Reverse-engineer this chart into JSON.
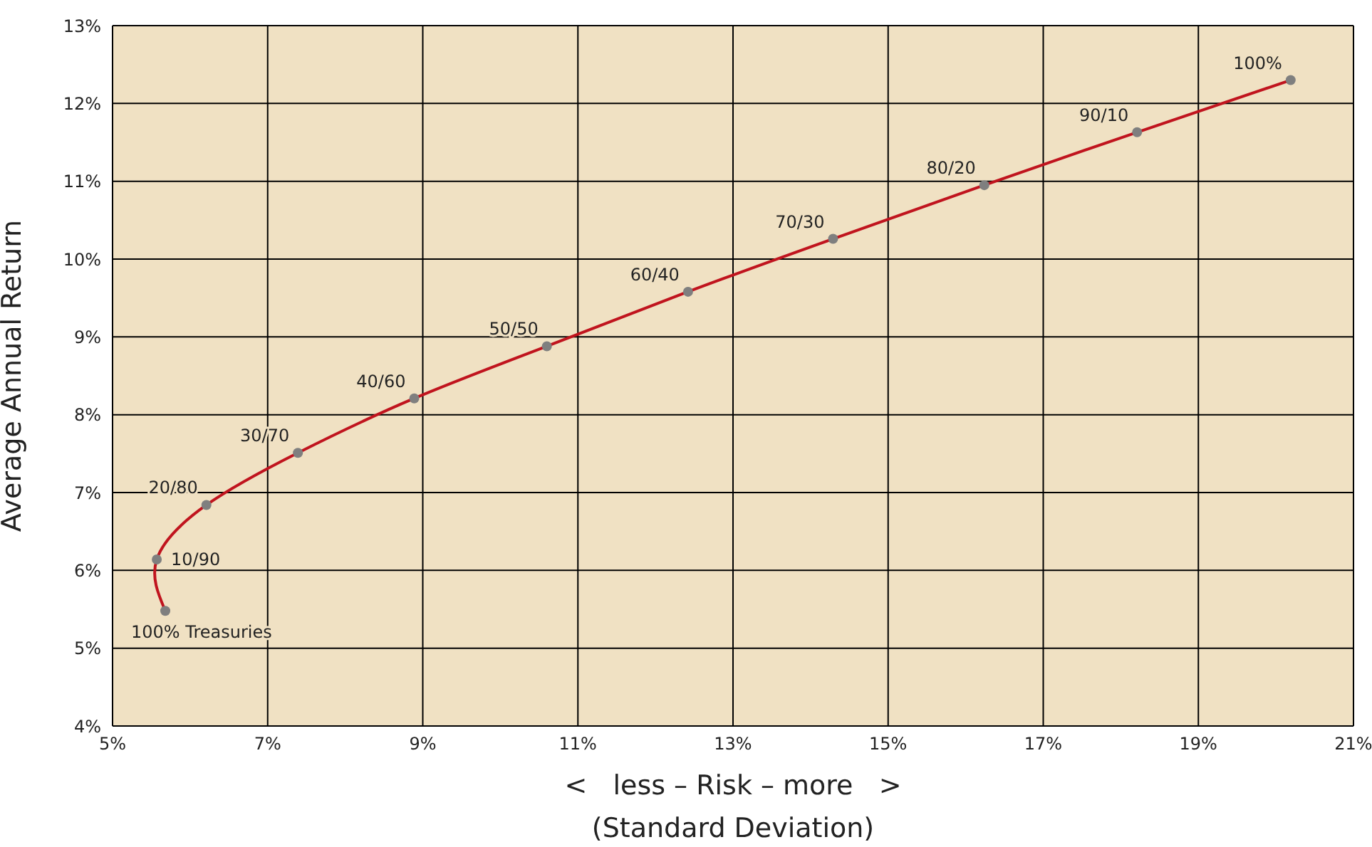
{
  "chart_data": {
    "type": "line",
    "xlabel": "<   less – Risk – more   >\n(Standard Deviation)",
    "ylabel": "Average Annual Return",
    "x": [
      5.68,
      5.57,
      6.21,
      7.39,
      8.89,
      10.6,
      12.42,
      14.29,
      16.24,
      18.21,
      20.19
    ],
    "series": [
      {
        "color": "#c0141e",
        "values": [
          5.48,
          6.14,
          6.84,
          7.51,
          8.21,
          8.88,
          9.58,
          10.26,
          10.95,
          11.63,
          12.3
        ]
      }
    ],
    "annotations": [
      {
        "text": "100% Treasuries",
        "x": 5.68,
        "y": 5.48
      },
      {
        "text": "10/90",
        "x": 5.57,
        "y": 6.14
      },
      {
        "text": "20/80",
        "x": 6.21,
        "y": 6.84
      },
      {
        "text": "30/70",
        "x": 7.39,
        "y": 7.51
      },
      {
        "text": "40/60",
        "x": 8.89,
        "y": 8.21
      },
      {
        "text": "50/50",
        "x": 10.6,
        "y": 8.88
      },
      {
        "text": "60/40",
        "x": 12.42,
        "y": 9.58
      },
      {
        "text": "70/30",
        "x": 14.29,
        "y": 10.26
      },
      {
        "text": "80/20",
        "x": 16.24,
        "y": 10.95
      },
      {
        "text": "90/10",
        "x": 18.21,
        "y": 11.63
      },
      {
        "text": "100%",
        "x": 20.19,
        "y": 12.3
      }
    ],
    "xlim": [
      5,
      21
    ],
    "xticks": [
      {
        "value": 5,
        "label": "5%"
      },
      {
        "value": 7,
        "label": "7%"
      },
      {
        "value": 9,
        "label": "9%"
      },
      {
        "value": 11,
        "label": "11%"
      },
      {
        "value": 13,
        "label": "13%"
      },
      {
        "value": 15,
        "label": "15%"
      },
      {
        "value": 17,
        "label": "17%"
      },
      {
        "value": 19,
        "label": "19%"
      },
      {
        "value": 21,
        "label": "21%"
      }
    ],
    "ylim": [
      4,
      13
    ],
    "yticks": [
      {
        "value": 4,
        "label": "4%"
      },
      {
        "value": 5,
        "label": "5%"
      },
      {
        "value": 6,
        "label": "6%"
      },
      {
        "value": 7,
        "label": "7%"
      },
      {
        "value": 8,
        "label": "8%"
      },
      {
        "value": 9,
        "label": "9%"
      },
      {
        "value": 10,
        "label": "10%"
      },
      {
        "value": 11,
        "label": "11%"
      },
      {
        "value": 12,
        "label": "12%"
      },
      {
        "value": 13,
        "label": "13%"
      }
    ],
    "grid": true,
    "marker": "circle",
    "line_style": "solid"
  }
}
